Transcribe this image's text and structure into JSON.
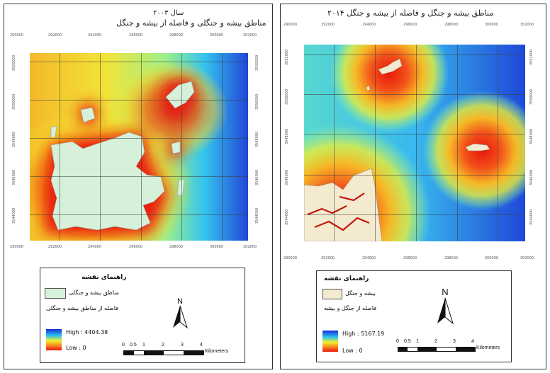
{
  "left": {
    "year_title": "سال ۲۰۰۳",
    "title": "مناطق بیشه و جنگلی و فاصله از بیشه و جنگل",
    "x_ticks": [
      "290000",
      "292000",
      "294000",
      "296000",
      "298000",
      "300000",
      "302000"
    ],
    "y_ticks": [
      "3552000",
      "3550000",
      "3548000",
      "3546000",
      "3544000"
    ],
    "legend": {
      "heading": "راهنمای نقشه",
      "class_label": "مناطق بیشه و جنگلی",
      "distance_label": "فاصله از مناطق بیشه و جنگلی",
      "high": "High : 4404.38",
      "low": "Low : 0",
      "swatch_color": "#d6f0d9"
    },
    "north": "N",
    "scale_labels": [
      "0",
      "0.5",
      "1",
      "2",
      "3",
      "4"
    ],
    "scale_unit": "Kilometers"
  },
  "right": {
    "title": "مناطق بیشه و جنگل و فاصله از بیشه و جنگل ۲۰۱۴",
    "x_ticks": [
      "290000",
      "292000",
      "294000",
      "296000",
      "298000",
      "300000",
      "302000"
    ],
    "y_ticks": [
      "3552000",
      "3550000",
      "3548000",
      "3546000",
      "3544000"
    ],
    "legend": {
      "heading": "راهنمای نقشه",
      "class_label": "بیشه و جنگل",
      "distance_label": "فاصله از جنگل و بیشه",
      "high": "High : 5167.19",
      "low": "Low : 0",
      "swatch_color": "#f3ead0"
    },
    "north": "N",
    "scale_labels": [
      "0",
      "0.5",
      "1",
      "2",
      "3",
      "4"
    ],
    "scale_unit": "Kilometers"
  },
  "colors": {
    "high": "#1a2bd8",
    "mid": "#f2f22c",
    "low": "#e8170c"
  }
}
